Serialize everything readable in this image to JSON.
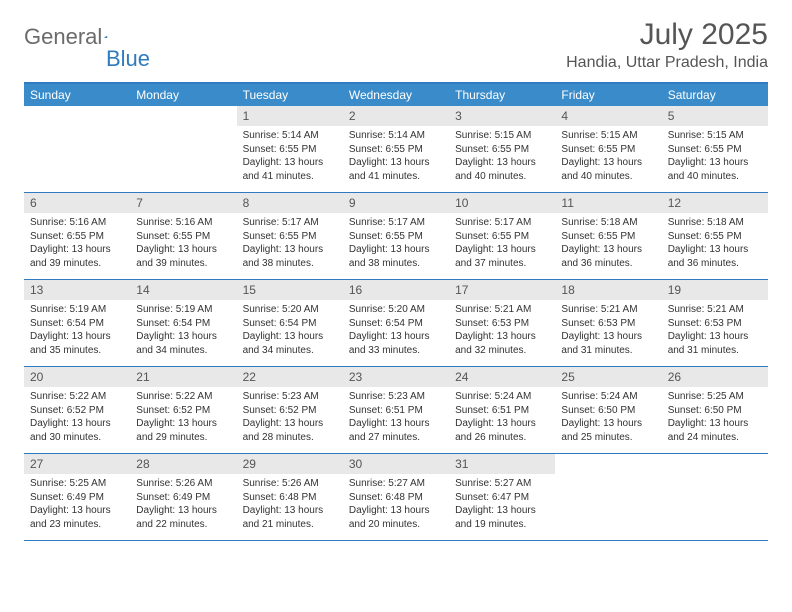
{
  "logo": {
    "text1": "General",
    "text2": "Blue"
  },
  "header": {
    "month": "July 2025",
    "location": "Handia, Uttar Pradesh, India"
  },
  "colors": {
    "brand_blue": "#3a8bc9",
    "border_blue": "#2f7bbf",
    "daynum_bg": "#e8e8e8",
    "text_gray": "#555555",
    "logo_gray": "#6b6b6b"
  },
  "weekdays": [
    "Sunday",
    "Monday",
    "Tuesday",
    "Wednesday",
    "Thursday",
    "Friday",
    "Saturday"
  ],
  "weeks": [
    [
      {
        "n": "",
        "sr": "",
        "ss": "",
        "dl": ""
      },
      {
        "n": "",
        "sr": "",
        "ss": "",
        "dl": ""
      },
      {
        "n": "1",
        "sr": "Sunrise: 5:14 AM",
        "ss": "Sunset: 6:55 PM",
        "dl": "Daylight: 13 hours and 41 minutes."
      },
      {
        "n": "2",
        "sr": "Sunrise: 5:14 AM",
        "ss": "Sunset: 6:55 PM",
        "dl": "Daylight: 13 hours and 41 minutes."
      },
      {
        "n": "3",
        "sr": "Sunrise: 5:15 AM",
        "ss": "Sunset: 6:55 PM",
        "dl": "Daylight: 13 hours and 40 minutes."
      },
      {
        "n": "4",
        "sr": "Sunrise: 5:15 AM",
        "ss": "Sunset: 6:55 PM",
        "dl": "Daylight: 13 hours and 40 minutes."
      },
      {
        "n": "5",
        "sr": "Sunrise: 5:15 AM",
        "ss": "Sunset: 6:55 PM",
        "dl": "Daylight: 13 hours and 40 minutes."
      }
    ],
    [
      {
        "n": "6",
        "sr": "Sunrise: 5:16 AM",
        "ss": "Sunset: 6:55 PM",
        "dl": "Daylight: 13 hours and 39 minutes."
      },
      {
        "n": "7",
        "sr": "Sunrise: 5:16 AM",
        "ss": "Sunset: 6:55 PM",
        "dl": "Daylight: 13 hours and 39 minutes."
      },
      {
        "n": "8",
        "sr": "Sunrise: 5:17 AM",
        "ss": "Sunset: 6:55 PM",
        "dl": "Daylight: 13 hours and 38 minutes."
      },
      {
        "n": "9",
        "sr": "Sunrise: 5:17 AM",
        "ss": "Sunset: 6:55 PM",
        "dl": "Daylight: 13 hours and 38 minutes."
      },
      {
        "n": "10",
        "sr": "Sunrise: 5:17 AM",
        "ss": "Sunset: 6:55 PM",
        "dl": "Daylight: 13 hours and 37 minutes."
      },
      {
        "n": "11",
        "sr": "Sunrise: 5:18 AM",
        "ss": "Sunset: 6:55 PM",
        "dl": "Daylight: 13 hours and 36 minutes."
      },
      {
        "n": "12",
        "sr": "Sunrise: 5:18 AM",
        "ss": "Sunset: 6:55 PM",
        "dl": "Daylight: 13 hours and 36 minutes."
      }
    ],
    [
      {
        "n": "13",
        "sr": "Sunrise: 5:19 AM",
        "ss": "Sunset: 6:54 PM",
        "dl": "Daylight: 13 hours and 35 minutes."
      },
      {
        "n": "14",
        "sr": "Sunrise: 5:19 AM",
        "ss": "Sunset: 6:54 PM",
        "dl": "Daylight: 13 hours and 34 minutes."
      },
      {
        "n": "15",
        "sr": "Sunrise: 5:20 AM",
        "ss": "Sunset: 6:54 PM",
        "dl": "Daylight: 13 hours and 34 minutes."
      },
      {
        "n": "16",
        "sr": "Sunrise: 5:20 AM",
        "ss": "Sunset: 6:54 PM",
        "dl": "Daylight: 13 hours and 33 minutes."
      },
      {
        "n": "17",
        "sr": "Sunrise: 5:21 AM",
        "ss": "Sunset: 6:53 PM",
        "dl": "Daylight: 13 hours and 32 minutes."
      },
      {
        "n": "18",
        "sr": "Sunrise: 5:21 AM",
        "ss": "Sunset: 6:53 PM",
        "dl": "Daylight: 13 hours and 31 minutes."
      },
      {
        "n": "19",
        "sr": "Sunrise: 5:21 AM",
        "ss": "Sunset: 6:53 PM",
        "dl": "Daylight: 13 hours and 31 minutes."
      }
    ],
    [
      {
        "n": "20",
        "sr": "Sunrise: 5:22 AM",
        "ss": "Sunset: 6:52 PM",
        "dl": "Daylight: 13 hours and 30 minutes."
      },
      {
        "n": "21",
        "sr": "Sunrise: 5:22 AM",
        "ss": "Sunset: 6:52 PM",
        "dl": "Daylight: 13 hours and 29 minutes."
      },
      {
        "n": "22",
        "sr": "Sunrise: 5:23 AM",
        "ss": "Sunset: 6:52 PM",
        "dl": "Daylight: 13 hours and 28 minutes."
      },
      {
        "n": "23",
        "sr": "Sunrise: 5:23 AM",
        "ss": "Sunset: 6:51 PM",
        "dl": "Daylight: 13 hours and 27 minutes."
      },
      {
        "n": "24",
        "sr": "Sunrise: 5:24 AM",
        "ss": "Sunset: 6:51 PM",
        "dl": "Daylight: 13 hours and 26 minutes."
      },
      {
        "n": "25",
        "sr": "Sunrise: 5:24 AM",
        "ss": "Sunset: 6:50 PM",
        "dl": "Daylight: 13 hours and 25 minutes."
      },
      {
        "n": "26",
        "sr": "Sunrise: 5:25 AM",
        "ss": "Sunset: 6:50 PM",
        "dl": "Daylight: 13 hours and 24 minutes."
      }
    ],
    [
      {
        "n": "27",
        "sr": "Sunrise: 5:25 AM",
        "ss": "Sunset: 6:49 PM",
        "dl": "Daylight: 13 hours and 23 minutes."
      },
      {
        "n": "28",
        "sr": "Sunrise: 5:26 AM",
        "ss": "Sunset: 6:49 PM",
        "dl": "Daylight: 13 hours and 22 minutes."
      },
      {
        "n": "29",
        "sr": "Sunrise: 5:26 AM",
        "ss": "Sunset: 6:48 PM",
        "dl": "Daylight: 13 hours and 21 minutes."
      },
      {
        "n": "30",
        "sr": "Sunrise: 5:27 AM",
        "ss": "Sunset: 6:48 PM",
        "dl": "Daylight: 13 hours and 20 minutes."
      },
      {
        "n": "31",
        "sr": "Sunrise: 5:27 AM",
        "ss": "Sunset: 6:47 PM",
        "dl": "Daylight: 13 hours and 19 minutes."
      },
      {
        "n": "",
        "sr": "",
        "ss": "",
        "dl": ""
      },
      {
        "n": "",
        "sr": "",
        "ss": "",
        "dl": ""
      }
    ]
  ]
}
